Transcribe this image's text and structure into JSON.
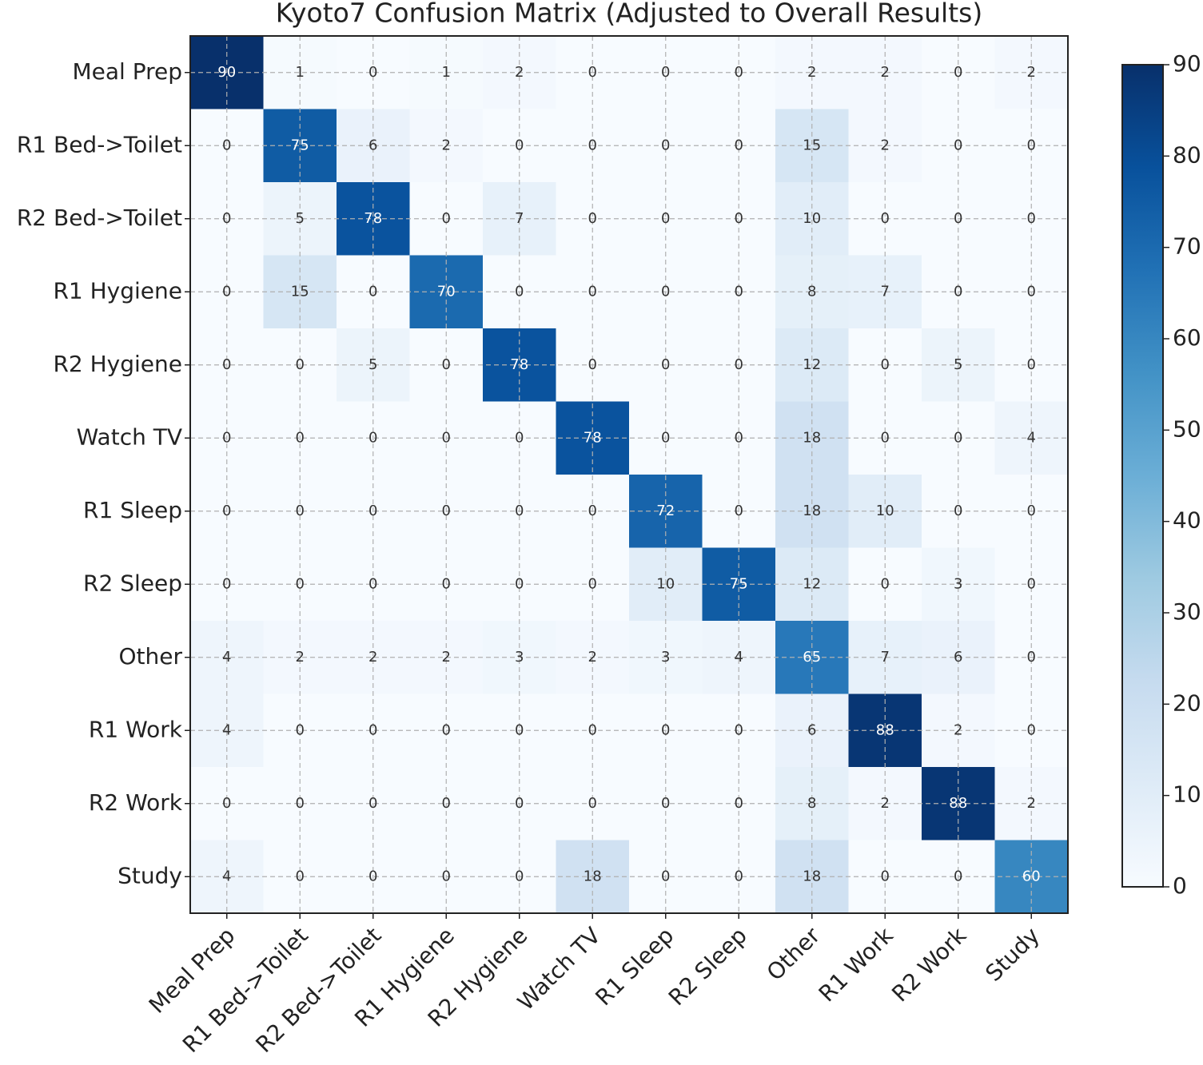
{
  "chart_data": {
    "type": "heatmap",
    "title": "Kyoto7 Confusion Matrix (Adjusted to Overall Results)",
    "categories": [
      "Meal Prep",
      "R1 Bed->Toilet",
      "R2 Bed->Toilet",
      "R1 Hygiene",
      "R2 Hygiene",
      "Watch TV",
      "R1 Sleep",
      "R2 Sleep",
      "Other",
      "R1 Work",
      "R2 Work",
      "Study"
    ],
    "values": [
      [
        90,
        1,
        0,
        1,
        2,
        0,
        0,
        0,
        2,
        2,
        0,
        2
      ],
      [
        0,
        75,
        6,
        2,
        0,
        0,
        0,
        0,
        15,
        2,
        0,
        0
      ],
      [
        0,
        5,
        78,
        0,
        7,
        0,
        0,
        0,
        10,
        0,
        0,
        0
      ],
      [
        0,
        15,
        0,
        70,
        0,
        0,
        0,
        0,
        8,
        7,
        0,
        0
      ],
      [
        0,
        0,
        5,
        0,
        78,
        0,
        0,
        0,
        12,
        0,
        5,
        0
      ],
      [
        0,
        0,
        0,
        0,
        0,
        78,
        0,
        0,
        18,
        0,
        0,
        4
      ],
      [
        0,
        0,
        0,
        0,
        0,
        0,
        72,
        0,
        18,
        10,
        0,
        0
      ],
      [
        0,
        0,
        0,
        0,
        0,
        0,
        10,
        75,
        12,
        0,
        3,
        0
      ],
      [
        4,
        2,
        2,
        2,
        3,
        2,
        3,
        4,
        65,
        7,
        6,
        0
      ],
      [
        4,
        0,
        0,
        0,
        0,
        0,
        0,
        0,
        6,
        88,
        2,
        0
      ],
      [
        0,
        0,
        0,
        0,
        0,
        0,
        0,
        0,
        8,
        2,
        88,
        2
      ],
      [
        4,
        0,
        0,
        0,
        0,
        18,
        0,
        0,
        18,
        0,
        0,
        60
      ]
    ],
    "colormap": "Blues",
    "clim": [
      0,
      90
    ],
    "cticks": [
      0,
      10,
      20,
      30,
      40,
      50,
      60,
      70,
      80,
      90
    ],
    "grid": true
  }
}
